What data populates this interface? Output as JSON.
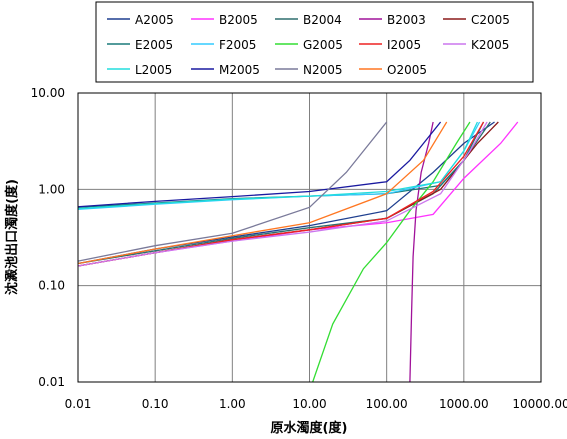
{
  "chart_data": {
    "type": "line",
    "xlabel": "原水濁度(度)",
    "ylabel": "沈澱池出口濁度(度)",
    "x_scale": "log",
    "y_scale": "log",
    "xlim": [
      0.01,
      10000
    ],
    "ylim": [
      0.01,
      10
    ],
    "x_ticks": [
      "0.01",
      "0.10",
      "1.00",
      "10.00",
      "100.00",
      "1000.00",
      "10000.00"
    ],
    "y_ticks": [
      "10.00",
      "1.00",
      "0.10",
      "0.01"
    ],
    "grid": true,
    "legend_position": "top",
    "series": [
      {
        "name": "A2005",
        "color": "#1f3f8f",
        "points": [
          [
            0.01,
            0.17
          ],
          [
            0.1,
            0.24
          ],
          [
            1,
            0.32
          ],
          [
            10,
            0.42
          ],
          [
            100,
            0.6
          ],
          [
            400,
            1.5
          ],
          [
            1000,
            3
          ],
          [
            2500,
            5
          ]
        ]
      },
      {
        "name": "B2005",
        "color": "#ff33ff",
        "points": [
          [
            0.01,
            0.16
          ],
          [
            0.1,
            0.22
          ],
          [
            1,
            0.29
          ],
          [
            10,
            0.38
          ],
          [
            100,
            0.45
          ],
          [
            400,
            0.55
          ],
          [
            1000,
            1.3
          ],
          [
            3000,
            3
          ],
          [
            5000,
            5
          ]
        ]
      },
      {
        "name": "B2004",
        "color": "#2e6e6e",
        "points": [
          [
            0.01,
            0.17
          ],
          [
            0.1,
            0.23
          ],
          [
            1,
            0.31
          ],
          [
            10,
            0.4
          ],
          [
            100,
            0.5
          ],
          [
            400,
            0.9
          ],
          [
            1000,
            2
          ],
          [
            2200,
            5
          ]
        ]
      },
      {
        "name": "B2003",
        "color": "#a0129a",
        "points": [
          [
            200,
            0.01
          ],
          [
            210,
            0.05
          ],
          [
            220,
            0.2
          ],
          [
            240,
            0.6
          ],
          [
            280,
            1.5
          ],
          [
            350,
            3
          ],
          [
            400,
            5
          ]
        ]
      },
      {
        "name": "C2005",
        "color": "#8b1a1a",
        "points": [
          [
            0.01,
            0.16
          ],
          [
            0.1,
            0.22
          ],
          [
            1,
            0.3
          ],
          [
            10,
            0.38
          ],
          [
            100,
            0.5
          ],
          [
            500,
            1
          ],
          [
            1500,
            3
          ],
          [
            2800,
            5
          ]
        ]
      },
      {
        "name": "E2005",
        "color": "#1a7a7a",
        "points": [
          [
            0.01,
            0.65
          ],
          [
            0.1,
            0.72
          ],
          [
            1,
            0.8
          ],
          [
            10,
            0.85
          ],
          [
            100,
            0.9
          ],
          [
            500,
            1.1
          ],
          [
            1000,
            2
          ],
          [
            1800,
            5
          ]
        ]
      },
      {
        "name": "F2005",
        "color": "#33ccff",
        "points": [
          [
            0.01,
            0.62
          ],
          [
            0.1,
            0.7
          ],
          [
            1,
            0.78
          ],
          [
            10,
            0.85
          ],
          [
            100,
            0.9
          ],
          [
            500,
            1.2
          ],
          [
            1000,
            2.5
          ],
          [
            1600,
            5
          ]
        ]
      },
      {
        "name": "G2005",
        "color": "#33dd33",
        "points": [
          [
            11,
            0.01
          ],
          [
            20,
            0.04
          ],
          [
            50,
            0.15
          ],
          [
            100,
            0.28
          ],
          [
            200,
            0.6
          ],
          [
            400,
            1.2
          ],
          [
            800,
            3
          ],
          [
            1200,
            5
          ]
        ]
      },
      {
        "name": "I2005",
        "color": "#ee2222",
        "points": [
          [
            0.01,
            0.16
          ],
          [
            0.1,
            0.22
          ],
          [
            1,
            0.3
          ],
          [
            10,
            0.38
          ],
          [
            100,
            0.5
          ],
          [
            400,
            0.95
          ],
          [
            1000,
            2.2
          ],
          [
            1800,
            5
          ]
        ]
      },
      {
        "name": "K2005",
        "color": "#cc77ee",
        "points": [
          [
            0.01,
            0.16
          ],
          [
            0.1,
            0.22
          ],
          [
            1,
            0.29
          ],
          [
            10,
            0.36
          ],
          [
            100,
            0.47
          ],
          [
            500,
            0.9
          ],
          [
            1200,
            2.5
          ],
          [
            2000,
            5
          ]
        ]
      },
      {
        "name": "L2005",
        "color": "#22dddd",
        "points": [
          [
            0.01,
            0.63
          ],
          [
            0.1,
            0.71
          ],
          [
            1,
            0.79
          ],
          [
            10,
            0.85
          ],
          [
            100,
            0.95
          ],
          [
            500,
            1.2
          ],
          [
            1000,
            2.5
          ],
          [
            1500,
            5
          ]
        ]
      },
      {
        "name": "M2005",
        "color": "#1a1aa0",
        "points": [
          [
            0.01,
            0.66
          ],
          [
            0.1,
            0.75
          ],
          [
            1,
            0.84
          ],
          [
            10,
            0.95
          ],
          [
            100,
            1.2
          ],
          [
            200,
            2
          ],
          [
            300,
            3
          ],
          [
            500,
            5
          ]
        ]
      },
      {
        "name": "N2005",
        "color": "#7a7a9a",
        "points": [
          [
            0.01,
            0.18
          ],
          [
            0.1,
            0.26
          ],
          [
            1,
            0.35
          ],
          [
            10,
            0.65
          ],
          [
            30,
            1.5
          ],
          [
            60,
            3
          ],
          [
            100,
            5
          ]
        ]
      },
      {
        "name": "O2005",
        "color": "#ff7722",
        "points": [
          [
            0.01,
            0.17
          ],
          [
            0.1,
            0.24
          ],
          [
            1,
            0.33
          ],
          [
            10,
            0.45
          ],
          [
            100,
            0.9
          ],
          [
            300,
            2
          ],
          [
            600,
            5
          ]
        ]
      }
    ]
  }
}
